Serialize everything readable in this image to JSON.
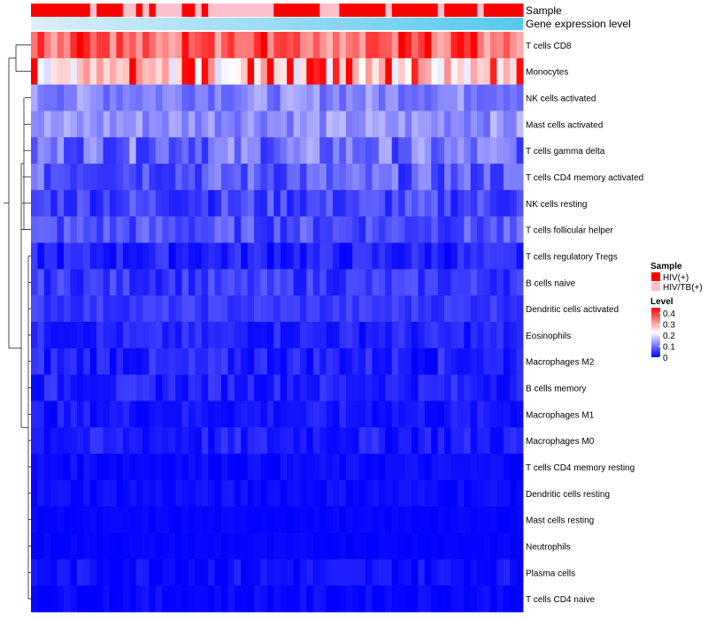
{
  "chart_data": {
    "type": "heatmap",
    "annotation_rows": [
      "Sample",
      "Gene expression level"
    ],
    "rows": [
      "T cells CD8",
      "Monocytes",
      "NK cells activated",
      "Mast cells activated",
      "T cells gamma delta",
      "T cells CD4 memory activated",
      "NK cells resting",
      "T cells follicular helper",
      "T cells regulatory  Tregs",
      "B cells naive",
      "Dendritic cells activated",
      "Eosinophils",
      "Macrophages M2",
      "B cells memory",
      "Macrophages M1",
      "Macrophages M0",
      "T cells CD4 memory resting",
      "Dendritic cells resting",
      "Mast cells resting",
      "Neutrophils",
      "Plasma cells",
      "T cells CD4 naive"
    ],
    "sample_groups": [
      1,
      1,
      1,
      1,
      1,
      1,
      1,
      1,
      1,
      0,
      1,
      1,
      1,
      1,
      0,
      0,
      1,
      0,
      1,
      0,
      0,
      0,
      0,
      1,
      1,
      0,
      1,
      0,
      0,
      0,
      0,
      0,
      0,
      0,
      0,
      0,
      0,
      1,
      1,
      1,
      1,
      1,
      1,
      1,
      0,
      0,
      0,
      1,
      1,
      1,
      1,
      1,
      1,
      1,
      0,
      1,
      1,
      1,
      1,
      1,
      1,
      1,
      0,
      1,
      1,
      1,
      1,
      1,
      0,
      1,
      1,
      1,
      1,
      1,
      1
    ],
    "expression_level": [
      0.01,
      0.02,
      0.04,
      0.05,
      0.07,
      0.08,
      0.09,
      0.11,
      0.12,
      0.13,
      0.14,
      0.16,
      0.17,
      0.18,
      0.2,
      0.21,
      0.22,
      0.24,
      0.25,
      0.26,
      0.28,
      0.29,
      0.3,
      0.32,
      0.33,
      0.34,
      0.36,
      0.37,
      0.38,
      0.39,
      0.41,
      0.42,
      0.43,
      0.45,
      0.46,
      0.47,
      0.49,
      0.5,
      0.51,
      0.53,
      0.54,
      0.55,
      0.57,
      0.58,
      0.59,
      0.61,
      0.62,
      0.63,
      0.64,
      0.66,
      0.67,
      0.68,
      0.7,
      0.71,
      0.72,
      0.74,
      0.75,
      0.76,
      0.78,
      0.79,
      0.8,
      0.82,
      0.83,
      0.84,
      0.86,
      0.87,
      0.88,
      0.89,
      0.91,
      0.92,
      0.93,
      0.95,
      0.96,
      0.97,
      0.99
    ],
    "row_means": [
      0.35,
      0.26,
      0.12,
      0.13,
      0.1,
      0.08,
      0.06,
      0.07,
      0.03,
      0.05,
      0.05,
      0.03,
      0.03,
      0.03,
      0.02,
      0.025,
      0.01,
      0.012,
      0.005,
      0.005,
      0.015,
      0.008
    ],
    "row_spread": [
      0.06,
      0.07,
      0.04,
      0.04,
      0.06,
      0.05,
      0.04,
      0.04,
      0.03,
      0.03,
      0.02,
      0.025,
      0.03,
      0.025,
      0.02,
      0.025,
      0.012,
      0.012,
      0.005,
      0.005,
      0.02,
      0.012
    ],
    "hot_cells": [
      {
        "row": 0,
        "values": [
          0.45,
          0.42,
          0.44,
          0.4,
          0.45,
          0.4,
          0.41
        ]
      },
      {
        "row": 1,
        "values": [
          0.45,
          0.42,
          0.44
        ]
      }
    ],
    "colors": {
      "low": "#0000FF",
      "mid": "#FFFFFF",
      "high": "#FF0000",
      "hiv": "#FF0000",
      "hivtb": "#FFC0CB",
      "expr_low": "#DCEEFA",
      "expr_high": "#56C8EF"
    },
    "color_range": [
      0,
      0.45
    ],
    "legend": {
      "sample_title": "Sample",
      "groups": [
        "HIV(+)",
        "HIV/TB(+)"
      ],
      "level_title": "Level",
      "ticks": [
        {
          "value": 0.4,
          "label": "0.4"
        },
        {
          "value": 0.3,
          "label": "0.3"
        },
        {
          "value": 0.2,
          "label": "0.2"
        },
        {
          "value": 0.1,
          "label": "0.1"
        },
        {
          "value": 0,
          "label": "0"
        }
      ],
      "position": "right"
    },
    "dendrogram": "row-only, left"
  }
}
